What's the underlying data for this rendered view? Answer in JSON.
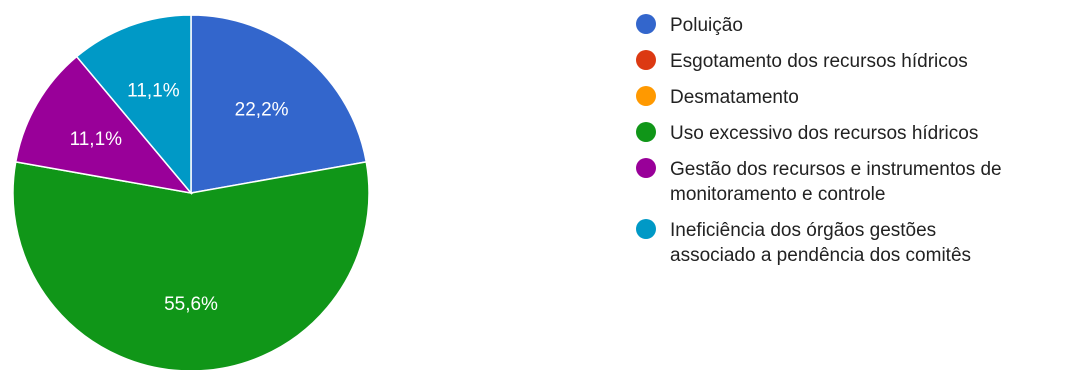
{
  "chart_data": {
    "type": "pie",
    "title": "",
    "slices": [
      {
        "label": "Poluição",
        "value": 22.2,
        "value_label": "22,2%",
        "color": "#3366cc"
      },
      {
        "label": "Esgotamento dos recursos hídricos",
        "value": 0,
        "value_label": "",
        "color": "#dc3912"
      },
      {
        "label": "Desmatamento",
        "value": 0,
        "value_label": "",
        "color": "#ff9900"
      },
      {
        "label": "Uso excessivo dos recursos hídricos",
        "value": 55.6,
        "value_label": "55,6%",
        "color": "#109618"
      },
      {
        "label": "Gestão dos recursos e instrumentos de monitoramento e controle",
        "value": 11.1,
        "value_label": "11,1%",
        "color": "#990099"
      },
      {
        "label": "Ineficiência dos órgãos gestões associado a pendência dos comitês",
        "value": 11.1,
        "value_label": "11,1%",
        "color": "#0099c6"
      }
    ],
    "legend": {
      "position": "right",
      "entries": [
        {
          "lines": [
            "Poluição"
          ],
          "color": "#3366cc"
        },
        {
          "lines": [
            "Esgotamento dos recursos hídricos"
          ],
          "color": "#dc3912"
        },
        {
          "lines": [
            "Desmatamento"
          ],
          "color": "#ff9900"
        },
        {
          "lines": [
            "Uso excessivo dos recursos hídricos"
          ],
          "color": "#109618"
        },
        {
          "lines": [
            "Gestão dos recursos e instrumentos de",
            "monitoramento e controle"
          ],
          "color": "#990099"
        },
        {
          "lines": [
            "Ineficiência dos órgãos gestões",
            "associado a pendência dos comitês"
          ],
          "color": "#0099c6"
        }
      ]
    },
    "start_angle": "12 o'clock",
    "direction": "clockwise"
  }
}
